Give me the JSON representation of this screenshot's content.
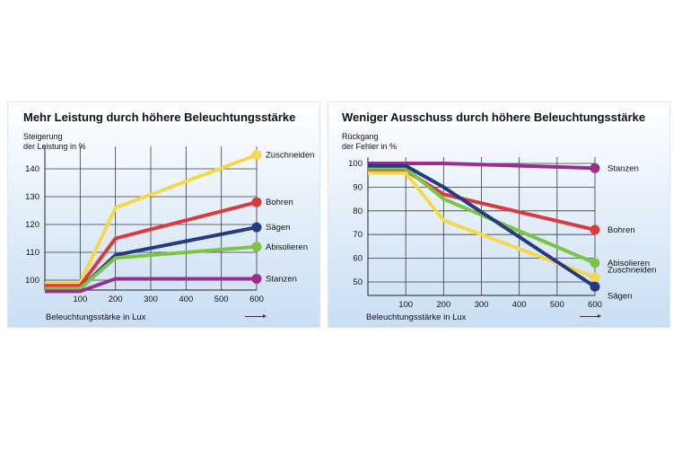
{
  "chart_data": [
    {
      "type": "line",
      "title": "Mehr Leistung durch höhere Beleuchtungsstärke",
      "ylabel_line1": "Steigerung",
      "ylabel_line2": "der Leistung in %",
      "xlabel": "Beleuchtungsstärke in Lux",
      "x": [
        0,
        100,
        200,
        600
      ],
      "xticks": [
        100,
        200,
        300,
        400,
        500,
        600
      ],
      "yticks": [
        100,
        110,
        120,
        130,
        140
      ],
      "xlim": [
        0,
        600
      ],
      "ylim": [
        95,
        150
      ],
      "grid": true,
      "series": [
        {
          "name": "Zuschneiden",
          "color": "#f5d84a",
          "values": [
            99,
            99,
            126,
            145
          ]
        },
        {
          "name": "Bohren",
          "color": "#d83a3e",
          "values": [
            98,
            98,
            115,
            128
          ]
        },
        {
          "name": "Sägen",
          "color": "#253a80",
          "values": [
            97,
            97,
            109,
            119
          ]
        },
        {
          "name": "Abisolieren",
          "color": "#7cc444",
          "values": [
            97,
            97,
            108,
            112
          ]
        },
        {
          "name": "Stanzen",
          "color": "#9b2d8f",
          "values": [
            96,
            96,
            100.5,
            100.5
          ]
        }
      ]
    },
    {
      "type": "line",
      "title": "Weniger Ausschuss durch höhere Beleuchtungsstärke",
      "ylabel_line1": "Rückgang",
      "ylabel_line2": "der Fehler in %",
      "xlabel": "Beleuchtungsstärke in Lux",
      "x": [
        0,
        100,
        200,
        600
      ],
      "xticks": [
        100,
        200,
        300,
        400,
        500,
        600
      ],
      "yticks": [
        50,
        60,
        70,
        80,
        90,
        100
      ],
      "xlim": [
        0,
        600
      ],
      "ylim": [
        45,
        102
      ],
      "grid": true,
      "series": [
        {
          "name": "Stanzen",
          "color": "#9b2d8f",
          "values": [
            100,
            100,
            100,
            98
          ]
        },
        {
          "name": "Bohren",
          "color": "#d83a3e",
          "values": [
            97,
            97,
            87,
            72
          ]
        },
        {
          "name": "Abisolieren",
          "color": "#7cc444",
          "values": [
            98,
            98,
            85,
            58
          ]
        },
        {
          "name": "Zuschneiden",
          "color": "#f5d84a",
          "values": [
            96,
            96,
            76,
            52
          ]
        },
        {
          "name": "Sägen",
          "color": "#253a80",
          "values": [
            99,
            99,
            90,
            48
          ]
        }
      ]
    }
  ]
}
